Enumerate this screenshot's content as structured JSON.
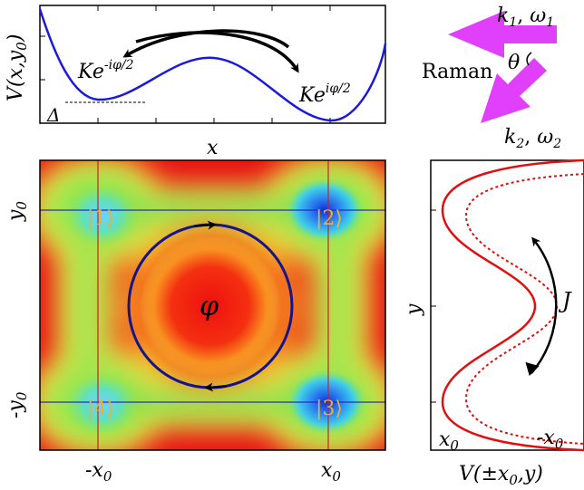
{
  "colors": {
    "potential_curve": "#1a1adc",
    "hop_arrow": "#000000",
    "raman_arrow": "#e040fb",
    "ring": "#14148c",
    "grid_h": "#2a2acc",
    "grid_v": "#cc2222",
    "cut_curve": "#e01010",
    "state_label": "#e6b23a"
  },
  "top_panel": {
    "ylabel": "V(x,y",
    "ylabel_sub": "0",
    "ylabel_close": ")",
    "xlabel": "x",
    "hop_left_base": "Ke",
    "hop_left_exp": "-iφ/2",
    "hop_right_base": "Ke",
    "hop_right_exp": "iφ/2",
    "delta": "Δ"
  },
  "raman": {
    "label": "Raman",
    "angle": "θ",
    "beam1": {
      "k": "k",
      "k_sub": "1",
      "w": "ω",
      "w_sub": "1"
    },
    "beam2": {
      "k": "k",
      "k_sub": "2",
      "w": "ω",
      "w_sub": "2"
    }
  },
  "main_panel": {
    "y_top_label": "y",
    "y_top_sub": "0",
    "y_bottom_label": "-y",
    "y_bottom_sub": "0",
    "x_left_label": "-x",
    "x_left_sub": "0",
    "x_right_label": "x",
    "x_right_sub": "0",
    "phi": "φ",
    "states": [
      "|1⟩",
      "|2⟩",
      "|3⟩",
      "|4⟩"
    ]
  },
  "side_panel": {
    "ylabel": "y",
    "xlabel": "V(±x",
    "xlabel_sub": "0",
    "xlabel_close": ",y)",
    "coupling": "J",
    "left_curve_label": "x",
    "left_curve_sub": "0",
    "right_curve_label": "-x",
    "right_curve_sub": "0"
  }
}
